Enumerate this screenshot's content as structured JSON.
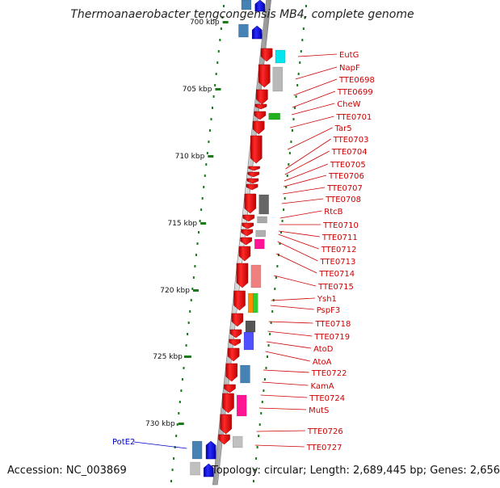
{
  "title": "Thermoanaerobacter tengcongensis MB4, complete genome",
  "footer": {
    "accession": "Accession: NC_003869",
    "topology": "Topology: circular; Length: 2,689,445 bp; Genes: 2,656"
  },
  "colors": {
    "axis_tick": "#1a7a1a",
    "gene_forward": "#ff0000",
    "gene_label": "#cc0000",
    "potE2_label": "#0000cc"
  },
  "scale_ticks": [
    "700 kbp",
    "705 kbp",
    "710 kbp",
    "715 kbp",
    "720 kbp",
    "725 kbp",
    "730 kbp"
  ],
  "gene_labels": [
    "EutG",
    "NapF",
    "TTE0698",
    "TTE0699",
    "CheW",
    "TTE0701",
    "Tar5",
    "TTE0703",
    "TTE0704",
    "TTE0705",
    "TTE0706",
    "TTE0707",
    "TTE0708",
    "RtcB",
    "TTE0710",
    "TTE0711",
    "TTE0712",
    "TTE0713",
    "TTE0714",
    "TTE0715",
    "Ysh1",
    "PspF3",
    "TTE0718",
    "TTE0719",
    "AtoD",
    "AtoA",
    "TTE0722",
    "KamA",
    "TTE0724",
    "MutS",
    "TTE0726",
    "TTE0727"
  ],
  "left_label": "PotE2"
}
